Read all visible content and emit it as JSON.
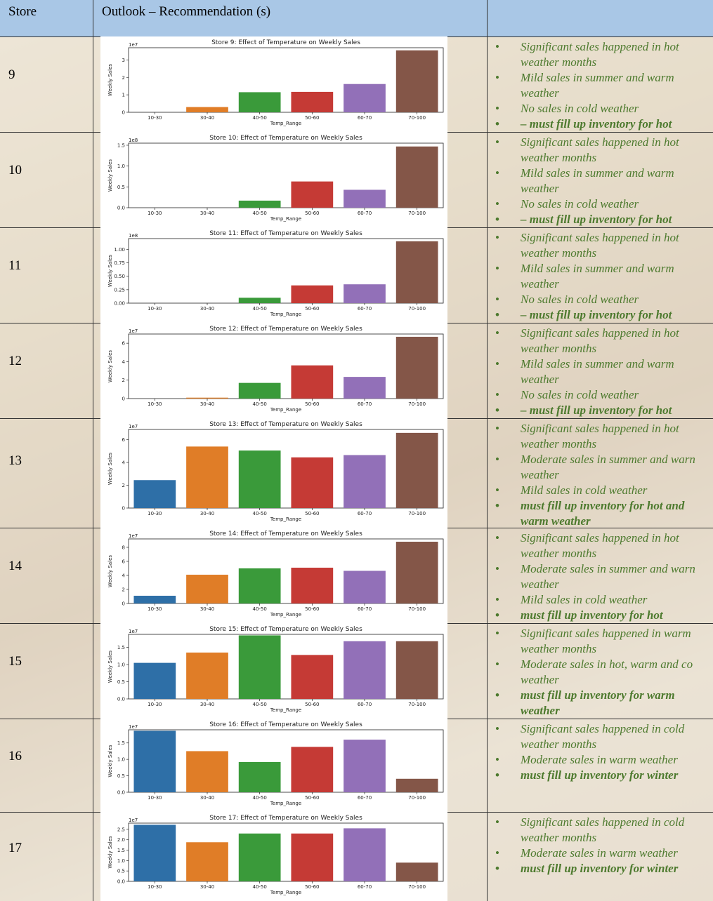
{
  "header": {
    "store": "Store",
    "outlook": "Outlook – Recommendation (s)"
  },
  "colors": [
    "#2e6fa7",
    "#e07d27",
    "#3a9a3a",
    "#c53a35",
    "#9270b8",
    "#845648"
  ],
  "chart_data": [
    {
      "type": "bar",
      "title": "Store  9: Effect of Temperature on Weekly Sales",
      "xlabel": "Temp_Range",
      "ylabel": "Weekly Sales",
      "scale_label": "1e7",
      "categories": [
        "10-30",
        "30-40",
        "40-50",
        "50-60",
        "60-70",
        "70-100"
      ],
      "values": [
        0,
        0.3,
        1.15,
        1.17,
        1.62,
        3.55
      ],
      "yticks": [
        0,
        1,
        2,
        3
      ],
      "ytick_labels": [
        "0",
        "1",
        "2",
        "3"
      ],
      "ylim": [
        0,
        3.7
      ]
    },
    {
      "type": "bar",
      "title": "Store  10: Effect of Temperature on Weekly Sales",
      "xlabel": "Temp_Range",
      "ylabel": "Weekly Sales",
      "scale_label": "1e8",
      "categories": [
        "10-30",
        "30-40",
        "40-50",
        "50-60",
        "60-70",
        "70-100"
      ],
      "values": [
        0,
        0,
        0.17,
        0.63,
        0.43,
        1.47
      ],
      "yticks": [
        0,
        0.5,
        1.0,
        1.5
      ],
      "ytick_labels": [
        "0.0",
        "0.5",
        "1.0",
        "1.5"
      ],
      "ylim": [
        0,
        1.55
      ]
    },
    {
      "type": "bar",
      "title": "Store  11: Effect of Temperature on Weekly Sales",
      "xlabel": "Temp_Range",
      "ylabel": "Weekly Sales",
      "scale_label": "1e8",
      "categories": [
        "10-30",
        "30-40",
        "40-50",
        "50-60",
        "60-70",
        "70-100"
      ],
      "values": [
        0,
        0,
        0.1,
        0.33,
        0.35,
        1.15
      ],
      "yticks": [
        0,
        0.25,
        0.5,
        0.75,
        1.0
      ],
      "ytick_labels": [
        "0.00",
        "0.25",
        "0.50",
        "0.75",
        "1.00"
      ],
      "ylim": [
        0,
        1.2
      ]
    },
    {
      "type": "bar",
      "title": "Store  12: Effect of Temperature on Weekly Sales",
      "xlabel": "Temp_Range",
      "ylabel": "Weekly Sales",
      "scale_label": "1e7",
      "categories": [
        "10-30",
        "30-40",
        "40-50",
        "50-60",
        "60-70",
        "70-100"
      ],
      "values": [
        0,
        0.1,
        1.7,
        3.6,
        2.35,
        6.7
      ],
      "yticks": [
        0,
        2,
        4,
        6
      ],
      "ytick_labels": [
        "0",
        "2",
        "4",
        "6"
      ],
      "ylim": [
        0,
        7
      ]
    },
    {
      "type": "bar",
      "title": "Store  13: Effect of Temperature on Weekly Sales",
      "xlabel": "Temp_Range",
      "ylabel": "Weekly Sales",
      "scale_label": "1e7",
      "categories": [
        "10-30",
        "30-40",
        "40-50",
        "50-60",
        "60-70",
        "70-100"
      ],
      "values": [
        2.45,
        5.4,
        5.05,
        4.45,
        4.65,
        6.6
      ],
      "yticks": [
        0,
        2,
        4,
        6
      ],
      "ytick_labels": [
        "0",
        "2",
        "4",
        "6"
      ],
      "ylim": [
        0,
        6.9
      ]
    },
    {
      "type": "bar",
      "title": "Store  14: Effect of Temperature on Weekly Sales",
      "xlabel": "Temp_Range",
      "ylabel": "Weekly Sales",
      "scale_label": "1e7",
      "categories": [
        "10-30",
        "30-40",
        "40-50",
        "50-60",
        "60-70",
        "70-100"
      ],
      "values": [
        1.1,
        4.1,
        5.0,
        5.1,
        4.65,
        8.8
      ],
      "yticks": [
        0,
        2,
        4,
        6,
        8
      ],
      "ytick_labels": [
        "0",
        "2",
        "4",
        "6",
        "8"
      ],
      "ylim": [
        0,
        9.2
      ]
    },
    {
      "type": "bar",
      "title": "Store  15: Effect of Temperature on Weekly Sales",
      "xlabel": "Temp_Range",
      "ylabel": "Weekly Sales",
      "scale_label": "1e7",
      "categories": [
        "10-30",
        "30-40",
        "40-50",
        "50-60",
        "60-70",
        "70-100"
      ],
      "values": [
        1.05,
        1.35,
        1.85,
        1.28,
        1.68,
        1.68
      ],
      "yticks": [
        0,
        0.5,
        1.0,
        1.5
      ],
      "ytick_labels": [
        "0.0",
        "0.5",
        "1.0",
        "1.5"
      ],
      "ylim": [
        0,
        1.88
      ]
    },
    {
      "type": "bar",
      "title": "Store  16: Effect of Temperature on Weekly Sales",
      "xlabel": "Temp_Range",
      "ylabel": "Weekly Sales",
      "scale_label": "1e7",
      "categories": [
        "10-30",
        "30-40",
        "40-50",
        "50-60",
        "60-70",
        "70-100"
      ],
      "values": [
        1.87,
        1.25,
        0.92,
        1.38,
        1.6,
        0.41
      ],
      "yticks": [
        0,
        0.5,
        1.0,
        1.5
      ],
      "ytick_labels": [
        "0.0",
        "0.5",
        "1.0",
        "1.5"
      ],
      "ylim": [
        0,
        1.9
      ]
    },
    {
      "type": "bar",
      "title": "Store  17: Effect of Temperature on Weekly Sales",
      "xlabel": "Temp_Range",
      "ylabel": "Weekly Sales",
      "scale_label": "1e7",
      "categories": [
        "10-30",
        "30-40",
        "40-50",
        "50-60",
        "60-70",
        "70-100"
      ],
      "values": [
        2.72,
        1.88,
        2.3,
        2.3,
        2.55,
        0.9
      ],
      "yticks": [
        0,
        0.5,
        1.0,
        1.5,
        2.0,
        2.5
      ],
      "ytick_labels": [
        "0.0",
        "0.5",
        "1.0",
        "1.5",
        "2.0",
        "2.5"
      ],
      "ylim": [
        0,
        2.8
      ]
    }
  ],
  "rows": [
    {
      "store": "9",
      "recs": [
        {
          "text": "Significant sales happened in hot weather months",
          "bold": false
        },
        {
          "text": "Mild sales in summer and warm weather",
          "bold": false
        },
        {
          "text": "No sales in cold weather",
          "bold": false
        },
        {
          "text": "– must fill up inventory for hot",
          "bold": true
        }
      ]
    },
    {
      "store": "10",
      "recs": [
        {
          "text": "Significant sales happened in hot weather months",
          "bold": false
        },
        {
          "text": "Mild sales in summer and warm weather",
          "bold": false
        },
        {
          "text": "No sales in cold weather",
          "bold": false
        },
        {
          "text": "– must fill up inventory for hot",
          "bold": true
        }
      ]
    },
    {
      "store": "11",
      "recs": [
        {
          "text": "Significant sales happened in hot weather months",
          "bold": false
        },
        {
          "text": "Mild sales in summer and warm weather",
          "bold": false
        },
        {
          "text": "No sales in cold weather",
          "bold": false
        },
        {
          "text": "– must fill up inventory for hot",
          "bold": true
        }
      ]
    },
    {
      "store": "12",
      "recs": [
        {
          "text": "Significant sales happened in hot weather months",
          "bold": false
        },
        {
          "text": "Mild sales in summer and warm weather",
          "bold": false
        },
        {
          "text": "No sales in cold weather",
          "bold": false
        },
        {
          "text": "– must fill up inventory for hot",
          "bold": true
        }
      ]
    },
    {
      "store": "13",
      "recs": [
        {
          "text": "Significant sales happened in hot weather months",
          "bold": false
        },
        {
          "text": "Moderate sales in summer and warn weather",
          "bold": false
        },
        {
          "text": "Mild sales in cold weather",
          "bold": false
        },
        {
          "text": "must fill up inventory for hot and warm weather",
          "bold": true
        }
      ]
    },
    {
      "store": "14",
      "recs": [
        {
          "text": "Significant sales happened in hot weather months",
          "bold": false
        },
        {
          "text": "Moderate sales in summer and warn weather",
          "bold": false
        },
        {
          "text": "Mild sales in cold weather",
          "bold": false
        },
        {
          "text": "must fill up inventory for hot",
          "bold": true
        }
      ]
    },
    {
      "store": "15",
      "recs": [
        {
          "text": "Significant sales happened in warm weather months",
          "bold": false
        },
        {
          "text": "Moderate sales in hot, warm and co weather",
          "bold": false
        },
        {
          "text": "must fill up inventory for warm weather",
          "bold": true
        }
      ]
    },
    {
      "store": "16",
      "recs": [
        {
          "text": "Significant sales happened in cold weather months",
          "bold": false
        },
        {
          "text": "Moderate sales in warm weather",
          "bold": false
        },
        {
          "text": "must fill up inventory for winter",
          "bold": true
        }
      ]
    },
    {
      "store": "17",
      "recs": [
        {
          "text": "Significant sales happened in cold weather months",
          "bold": false
        },
        {
          "text": "Moderate sales in warm weather",
          "bold": false
        },
        {
          "text": "must fill up inventory for winter",
          "bold": true
        }
      ]
    }
  ]
}
